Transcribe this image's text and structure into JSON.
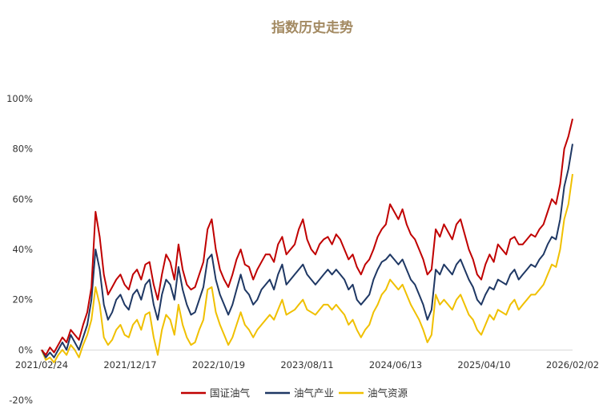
{
  "chart_data": {
    "type": "line",
    "title": "指数历史走势",
    "xlabel": "",
    "ylabel": "",
    "x_ticks": [
      "2021/02/24",
      "2021/12/17",
      "2022/10/19",
      "2023/08/11",
      "2024/06/13",
      "2025/04/10",
      "2026/02/02"
    ],
    "y_ticks": [
      "100%",
      "80%",
      "60%",
      "40%",
      "20%",
      "0%",
      "-20%"
    ],
    "ylim": [
      -20,
      100
    ],
    "grid": false,
    "legend_position": "bottom",
    "colors": {
      "国证油气": "#c00000",
      "油气产业": "#1f3864",
      "油气资源": "#f0c000"
    },
    "series": [
      {
        "name": "国证油气",
        "values": [
          0,
          -2,
          1,
          -1,
          2,
          5,
          3,
          8,
          6,
          4,
          10,
          15,
          25,
          55,
          45,
          30,
          22,
          25,
          28,
          30,
          26,
          24,
          30,
          32,
          28,
          34,
          35,
          26,
          20,
          30,
          38,
          35,
          28,
          42,
          32,
          26,
          24,
          25,
          30,
          35,
          48,
          52,
          40,
          32,
          28,
          25,
          30,
          36,
          40,
          34,
          33,
          28,
          32,
          35,
          38,
          38,
          35,
          42,
          45,
          38,
          40,
          42,
          48,
          52,
          44,
          40,
          38,
          42,
          44,
          45,
          42,
          46,
          44,
          40,
          36,
          38,
          33,
          30,
          34,
          36,
          40,
          45,
          48,
          50,
          58,
          55,
          52,
          56,
          50,
          46,
          44,
          40,
          36,
          30,
          32,
          48,
          45,
          50,
          47,
          44,
          50,
          52,
          46,
          40,
          36,
          30,
          28,
          34,
          38,
          35,
          42,
          40,
          38,
          44,
          45,
          42,
          42,
          44,
          46,
          45,
          48,
          50,
          55,
          60,
          58,
          66,
          80,
          85,
          92
        ]
      },
      {
        "name": "油气产业",
        "values": [
          0,
          -3,
          -1,
          -3,
          0,
          3,
          0,
          6,
          3,
          0,
          5,
          10,
          20,
          40,
          32,
          18,
          12,
          15,
          20,
          22,
          18,
          16,
          22,
          24,
          20,
          26,
          28,
          18,
          12,
          22,
          28,
          26,
          20,
          33,
          24,
          18,
          14,
          15,
          20,
          25,
          36,
          38,
          28,
          22,
          18,
          14,
          18,
          24,
          30,
          24,
          22,
          18,
          20,
          24,
          26,
          28,
          24,
          30,
          34,
          26,
          28,
          30,
          32,
          34,
          30,
          28,
          26,
          28,
          30,
          32,
          30,
          32,
          30,
          28,
          24,
          26,
          20,
          18,
          20,
          22,
          28,
          32,
          35,
          36,
          38,
          36,
          34,
          36,
          32,
          28,
          26,
          22,
          18,
          12,
          16,
          32,
          30,
          34,
          32,
          30,
          34,
          36,
          32,
          28,
          25,
          20,
          18,
          22,
          25,
          24,
          28,
          27,
          26,
          30,
          32,
          28,
          30,
          32,
          34,
          33,
          36,
          38,
          42,
          45,
          44,
          52,
          65,
          72,
          82
        ]
      },
      {
        "name": "油气资源",
        "values": [
          0,
          -4,
          -3,
          -5,
          -2,
          0,
          -2,
          2,
          0,
          -3,
          2,
          6,
          12,
          25,
          18,
          5,
          2,
          4,
          8,
          10,
          6,
          5,
          10,
          12,
          8,
          14,
          15,
          5,
          -2,
          8,
          14,
          12,
          6,
          18,
          10,
          5,
          2,
          3,
          8,
          12,
          24,
          25,
          15,
          10,
          6,
          2,
          5,
          10,
          15,
          10,
          8,
          5,
          8,
          10,
          12,
          14,
          12,
          16,
          20,
          14,
          15,
          16,
          18,
          20,
          16,
          15,
          14,
          16,
          18,
          18,
          16,
          18,
          16,
          14,
          10,
          12,
          8,
          5,
          8,
          10,
          15,
          18,
          22,
          24,
          28,
          26,
          24,
          26,
          22,
          18,
          15,
          12,
          8,
          3,
          6,
          22,
          18,
          20,
          18,
          16,
          20,
          22,
          18,
          14,
          12,
          8,
          6,
          10,
          14,
          12,
          16,
          15,
          14,
          18,
          20,
          16,
          18,
          20,
          22,
          22,
          24,
          26,
          30,
          34,
          33,
          40,
          52,
          58,
          70
        ]
      }
    ]
  }
}
